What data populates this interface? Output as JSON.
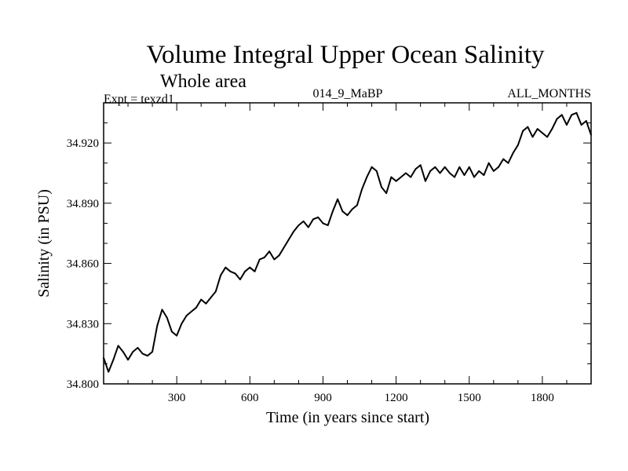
{
  "chart_data": {
    "type": "line",
    "title": "Volume Integral Upper Ocean Salinity",
    "subtitle": "Whole area",
    "expt_label": "Expt = texzd1",
    "run_label": "014_9_MaBP",
    "months_label": "ALL_MONTHS",
    "xlabel": "Time (in years since start)",
    "ylabel": "Salinity (in PSU)",
    "xlim": [
      0,
      2000
    ],
    "ylim": [
      34.8,
      34.94
    ],
    "xticks": [
      300,
      600,
      900,
      1200,
      1500,
      1800
    ],
    "yticks": [
      34.8,
      34.83,
      34.86,
      34.89,
      34.92
    ],
    "xtick_labels": [
      "300",
      "600",
      "900",
      "1200",
      "1500",
      "1800"
    ],
    "ytick_labels": [
      "34.800",
      "34.830",
      "34.860",
      "34.890",
      "34.920"
    ],
    "series": [
      {
        "name": "Salinity",
        "x": [
          0,
          20,
          40,
          60,
          80,
          100,
          120,
          140,
          160,
          180,
          200,
          220,
          240,
          260,
          280,
          300,
          320,
          340,
          360,
          380,
          400,
          420,
          440,
          460,
          480,
          500,
          520,
          540,
          560,
          580,
          600,
          620,
          640,
          660,
          680,
          700,
          720,
          740,
          760,
          780,
          800,
          820,
          840,
          860,
          880,
          900,
          920,
          940,
          960,
          980,
          1000,
          1020,
          1040,
          1060,
          1080,
          1100,
          1120,
          1140,
          1160,
          1180,
          1200,
          1220,
          1240,
          1260,
          1280,
          1300,
          1320,
          1340,
          1360,
          1380,
          1400,
          1420,
          1440,
          1460,
          1480,
          1500,
          1520,
          1540,
          1560,
          1580,
          1600,
          1620,
          1640,
          1660,
          1680,
          1700,
          1720,
          1740,
          1760,
          1780,
          1800,
          1820,
          1840,
          1860,
          1880,
          1900,
          1920,
          1940,
          1960,
          1980,
          2000
        ],
        "values": [
          34.813,
          34.806,
          34.812,
          34.819,
          34.816,
          34.812,
          34.816,
          34.818,
          34.815,
          34.814,
          34.816,
          34.829,
          34.837,
          34.833,
          34.826,
          34.824,
          34.83,
          34.834,
          34.836,
          34.838,
          34.842,
          34.84,
          34.843,
          34.846,
          34.854,
          34.858,
          34.856,
          34.855,
          34.852,
          34.856,
          34.858,
          34.856,
          34.862,
          34.863,
          34.866,
          34.862,
          34.864,
          34.868,
          34.872,
          34.876,
          34.879,
          34.881,
          34.878,
          34.882,
          34.883,
          34.88,
          34.879,
          34.886,
          34.892,
          34.886,
          34.884,
          34.887,
          34.889,
          34.897,
          34.903,
          34.908,
          34.906,
          34.898,
          34.895,
          34.903,
          34.901,
          34.903,
          34.905,
          34.903,
          34.907,
          34.909,
          34.901,
          34.906,
          34.908,
          34.905,
          34.908,
          34.905,
          34.903,
          34.908,
          34.904,
          34.908,
          34.903,
          34.906,
          34.904,
          34.91,
          34.906,
          34.908,
          34.912,
          34.91,
          34.915,
          34.919,
          34.926,
          34.928,
          34.923,
          34.927,
          34.925,
          34.923,
          34.927,
          34.932,
          34.934,
          34.929,
          34.934,
          34.935,
          34.929,
          34.931,
          34.924
        ]
      }
    ]
  }
}
